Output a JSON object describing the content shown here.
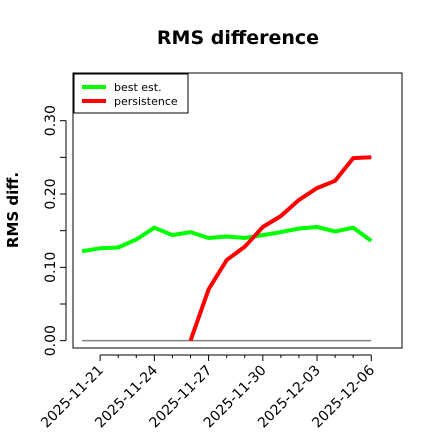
{
  "chart_data": {
    "type": "line",
    "title": "RMS difference",
    "xlabel": "",
    "ylabel": "RMS diff.",
    "x": [
      "2025-11-20",
      "2025-11-21",
      "2025-11-22",
      "2025-11-23",
      "2025-11-24",
      "2025-11-25",
      "2025-11-26",
      "2025-11-27",
      "2025-11-28",
      "2025-11-29",
      "2025-11-30",
      "2025-12-01",
      "2025-12-02",
      "2025-12-03",
      "2025-12-04",
      "2025-12-05",
      "2025-12-06"
    ],
    "x_ticks": [
      "2025-11-21",
      "2025-11-24",
      "2025-11-27",
      "2025-11-30",
      "2025-12-03",
      "2025-12-06"
    ],
    "xlim": [
      "2025-11-19.5",
      "2025-12-07.7"
    ],
    "y_ticks": [
      "0.00",
      "0.10",
      "0.20",
      "0.30"
    ],
    "ylim": [
      -0.01,
      0.365
    ],
    "grid": false,
    "legend_position": "top-left",
    "series": [
      {
        "name": "best est.",
        "color": "#00ff00",
        "values": [
          0.122,
          0.126,
          0.127,
          0.138,
          0.154,
          0.144,
          0.148,
          0.14,
          0.142,
          0.14,
          0.144,
          0.148,
          0.153,
          0.155,
          0.149,
          0.154,
          0.136
        ]
      },
      {
        "name": "persistence",
        "color": "#ff0000",
        "values": [
          null,
          null,
          null,
          null,
          null,
          null,
          0.0,
          0.07,
          0.11,
          0.128,
          0.155,
          0.17,
          0.192,
          0.208,
          0.218,
          0.249,
          0.25
        ]
      }
    ],
    "reference_line": {
      "y": 0.0,
      "from": "2025-11-20",
      "to": "2025-12-06",
      "color": "#808080"
    }
  }
}
